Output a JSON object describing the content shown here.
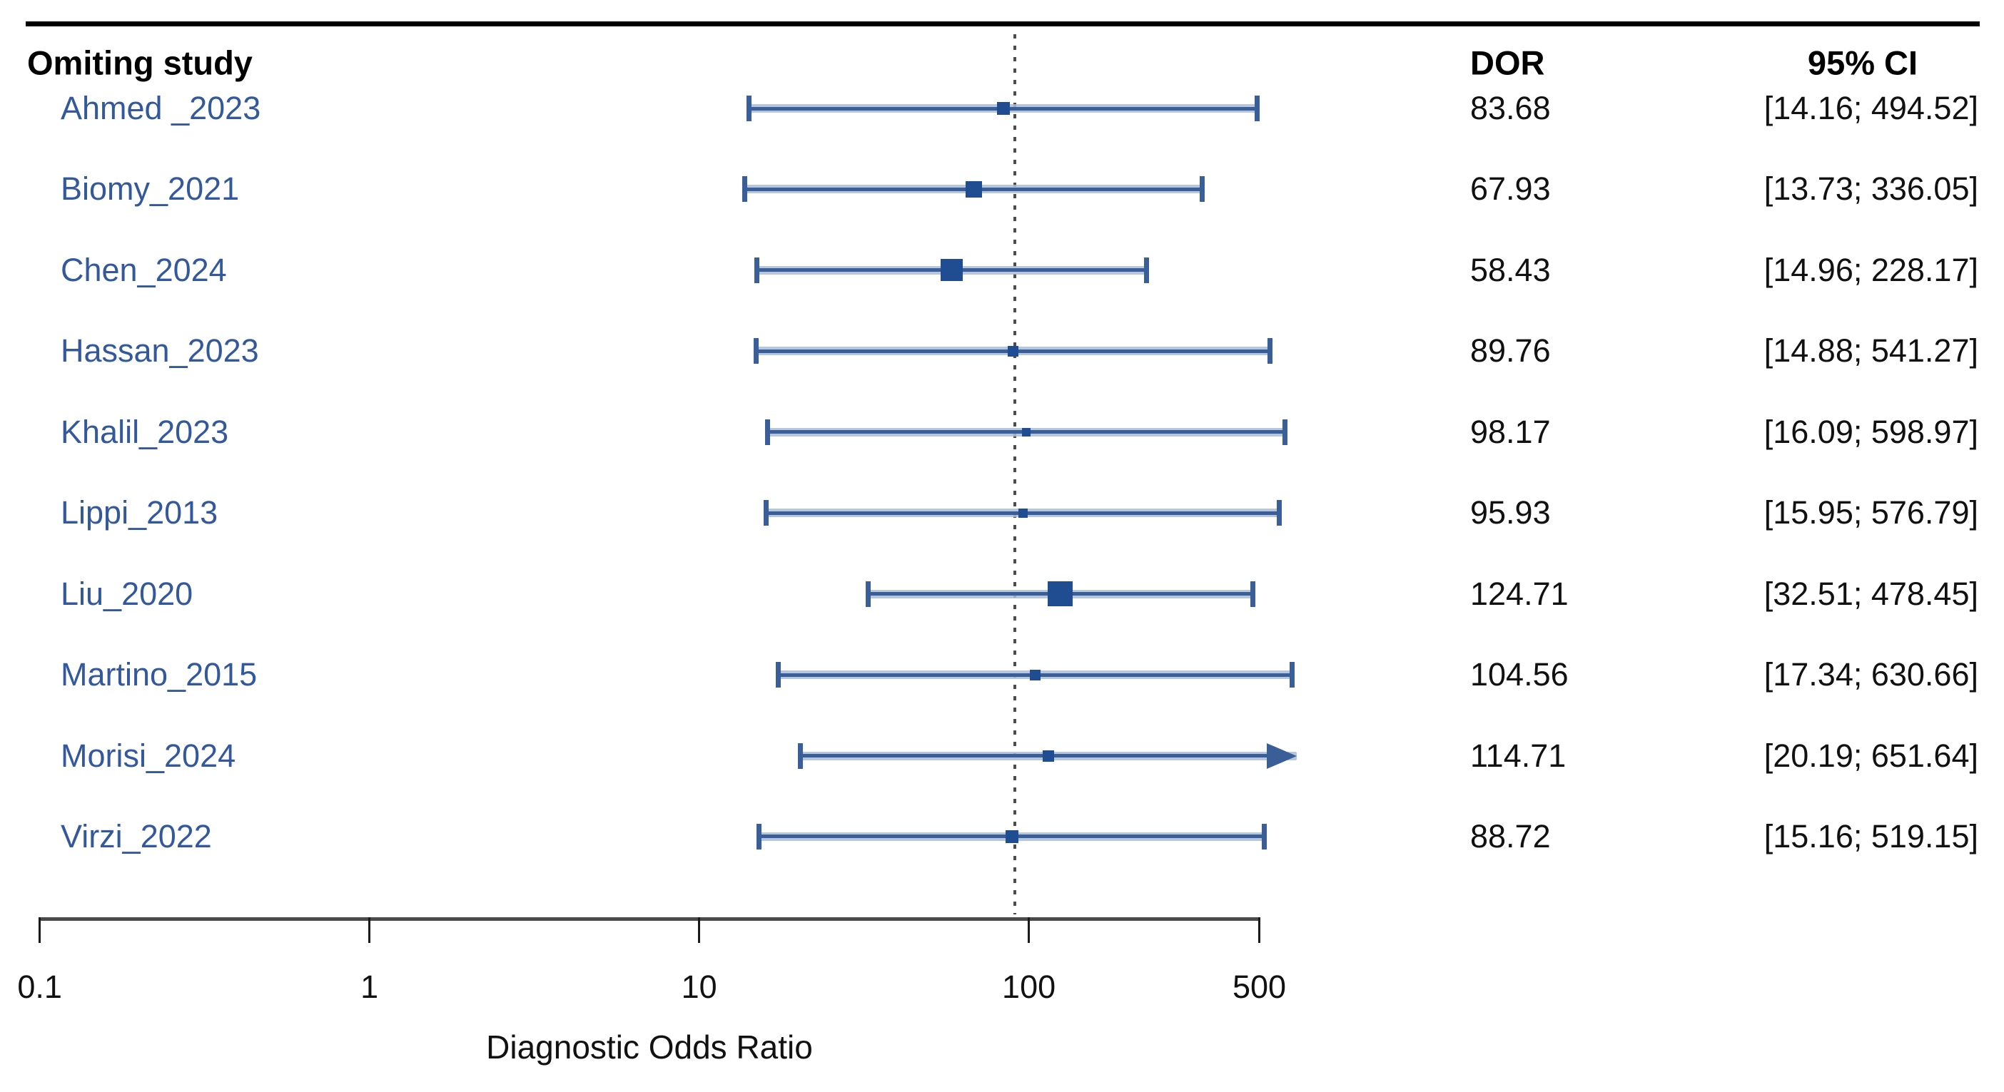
{
  "header": {
    "study_col": "Omiting study",
    "dor_col": "DOR",
    "ci_col": "95% CI"
  },
  "axis": {
    "label": "Diagnostic Odds Ratio",
    "tick_labels": [
      "0.1",
      "1",
      "10",
      "100",
      "500"
    ]
  },
  "colors": {
    "study_label": "#33589c",
    "marker": "#204c92",
    "ci_core": "#3a5f98",
    "ci_halo": "#a9bcd6",
    "ref_line": "#4d4d4d",
    "axis": "#4a4a4a",
    "text": "#111111"
  },
  "chart_data": {
    "type": "forest",
    "xlabel": "Diagnostic Odds Ratio",
    "x_scale": "log10",
    "x_ticks": [
      0.1,
      1,
      10,
      100,
      500
    ],
    "x_tick_labels": [
      "0.1",
      "1",
      "10",
      "100",
      "500"
    ],
    "x_range": [
      0.1,
      500
    ],
    "x_clip_max": 650,
    "reference_value": 90.6,
    "columns": [
      "Omiting study",
      "DOR",
      "95% CI"
    ],
    "studies": [
      {
        "label": "Ahmed _2023",
        "dor": 83.68,
        "dor_text": "83.68",
        "ci_low": 14.16,
        "ci_high": 494.52,
        "ci_text": "[14.16; 494.52]",
        "marker_size": 18,
        "arrow_high": false
      },
      {
        "label": "Biomy_2021",
        "dor": 67.93,
        "dor_text": "67.93",
        "ci_low": 13.73,
        "ci_high": 336.05,
        "ci_text": "[13.73; 336.05]",
        "marker_size": 23,
        "arrow_high": false
      },
      {
        "label": "Chen_2024",
        "dor": 58.43,
        "dor_text": "58.43",
        "ci_low": 14.96,
        "ci_high": 228.17,
        "ci_text": "[14.96; 228.17]",
        "marker_size": 31,
        "arrow_high": false
      },
      {
        "label": "Hassan_2023",
        "dor": 89.76,
        "dor_text": "89.76",
        "ci_low": 14.88,
        "ci_high": 541.27,
        "ci_text": "[14.88; 541.27]",
        "marker_size": 15,
        "arrow_high": false
      },
      {
        "label": "Khalil_2023",
        "dor": 98.17,
        "dor_text": "98.17",
        "ci_low": 16.09,
        "ci_high": 598.97,
        "ci_text": "[16.09; 598.97]",
        "marker_size": 12,
        "arrow_high": false
      },
      {
        "label": "Lippi_2013",
        "dor": 95.93,
        "dor_text": "95.93",
        "ci_low": 15.95,
        "ci_high": 576.79,
        "ci_text": "[15.95; 576.79]",
        "marker_size": 13,
        "arrow_high": false
      },
      {
        "label": "Liu_2020",
        "dor": 124.71,
        "dor_text": "124.71",
        "ci_low": 32.51,
        "ci_high": 478.45,
        "ci_text": "[32.51; 478.45]",
        "marker_size": 35,
        "arrow_high": false
      },
      {
        "label": "Martino_2015",
        "dor": 104.56,
        "dor_text": "104.56",
        "ci_low": 17.34,
        "ci_high": 630.66,
        "ci_text": "[17.34; 630.66]",
        "marker_size": 15,
        "arrow_high": false
      },
      {
        "label": "Morisi_2024",
        "dor": 114.71,
        "dor_text": "114.71",
        "ci_low": 20.19,
        "ci_high": 651.64,
        "ci_text": "[20.19; 651.64]",
        "marker_size": 16,
        "arrow_high": true
      },
      {
        "label": "Virzi_2022",
        "dor": 88.72,
        "dor_text": "88.72",
        "ci_low": 15.16,
        "ci_high": 519.15,
        "ci_text": "[15.16; 519.15]",
        "marker_size": 18,
        "arrow_high": false
      }
    ]
  }
}
